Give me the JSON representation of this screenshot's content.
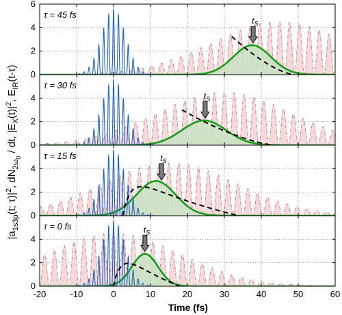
{
  "chart_data": {
    "type": "line",
    "xlabel": "Time (fs)",
    "ylabel_parts": [
      "|a",
      "1s3p",
      "(t; τ)|",
      "2",
      ", dN",
      "2ω",
      "0",
      " / dt, |E",
      "X",
      "(t)|",
      "2",
      ", E",
      "IR",
      "(t-τ)"
    ],
    "xlim": [
      -20,
      60
    ],
    "xticks": [
      -20,
      -10,
      0,
      10,
      20,
      30,
      40,
      50,
      60
    ],
    "ylim": [
      0,
      6
    ],
    "yticks": [
      0,
      2,
      4,
      6
    ],
    "grid": "dotted",
    "colors": {
      "xuv": "#1f5fbf",
      "ir": "#c8808a",
      "ir_fill": "#f6dada",
      "gauss": "#1a9a1a",
      "gauss_fill": "#c8e2c2",
      "dashed": "#000000",
      "arrow": "#7a7a7a"
    },
    "series_meaning": [
      "xuv pulse |E_X(t)|^2 (blue)",
      "IR field E_IR(t-τ) (red dash-dot, filled)",
      "dN/dt (green, filled)",
      "|a_1s3p|^2 (black dashed)"
    ],
    "panels": [
      {
        "tau_label": "τ = 45 fs",
        "tau": 45,
        "ts_label": "t",
        "ts_sub": "S",
        "ts": 37.8,
        "gauss_center": 37.5,
        "gauss_width": 7.2,
        "gauss_peak": 2.5,
        "dashed_start": 32.0,
        "dashed_end": 49.0,
        "dashed_start_val": 3.25
      },
      {
        "tau_label": "τ = 30 fs",
        "tau": 30,
        "ts_label": "t",
        "ts_sub": "S",
        "ts": 24.8,
        "gauss_center": 24.5,
        "gauss_width": 8.5,
        "gauss_peak": 2.1,
        "dashed_start": 18.5,
        "dashed_end": 44.0,
        "dashed_start_val": 3.0
      },
      {
        "tau_label": "τ = 15 fs",
        "tau": 15,
        "ts_label": "t",
        "ts_sub": "S",
        "ts": 13.0,
        "gauss_center": 11.5,
        "gauss_width": 7.5,
        "gauss_peak": 2.95,
        "dashed_start": 2.5,
        "dashed_end": 34.0,
        "dashed_start_val": 0.0
      },
      {
        "tau_label": "τ = 0 fs",
        "tau": 0,
        "ts_label": "t",
        "ts_sub": "S",
        "ts": 8.5,
        "gauss_center": 8.5,
        "gauss_width": 5.0,
        "gauss_peak": 2.75,
        "dashed_start": 0.0,
        "dashed_end": 18.0,
        "dashed_start_val": 0.0
      }
    ],
    "ir_period": 2.67,
    "ir_envelope_width": 26,
    "ir_peak": 4.5,
    "xuv_period": 1.33,
    "xuv_envelope_width": 4.5,
    "xuv_peak": 5.6
  }
}
